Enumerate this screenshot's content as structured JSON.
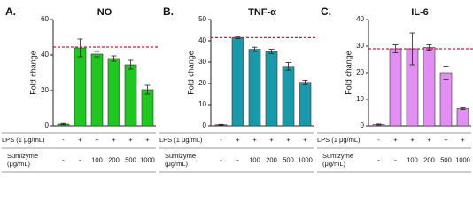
{
  "chart_data": [
    {
      "type": "bar",
      "panel": "A.",
      "title": "NO",
      "y_label": "Fold change",
      "values": [
        1,
        44,
        40.5,
        38,
        34.5,
        20.5
      ],
      "errors": [
        0.4,
        5,
        1.5,
        1.5,
        2.5,
        2.5
      ],
      "color": "#21c721",
      "reference_line": 44.5,
      "reference_color": "#c8203c",
      "ylim": [
        0,
        60
      ],
      "yticks": [
        0,
        20,
        40,
        60
      ],
      "conditions": [
        {
          "name": [
            "LPS (1 μg/mL)"
          ],
          "values": [
            "-",
            "+",
            "+",
            "+",
            "+",
            "+"
          ]
        },
        {
          "name": [
            "Sumizyme",
            "(μg/mL)"
          ],
          "values": [
            "-",
            "-",
            "100",
            "200",
            "500",
            "1000"
          ]
        }
      ]
    },
    {
      "type": "bar",
      "panel": "B.",
      "title": "TNF-α",
      "y_label": "Fold change",
      "values": [
        0.5,
        41.5,
        36,
        35,
        28,
        20.5
      ],
      "errors": [
        0.2,
        0.5,
        1,
        1,
        1.8,
        1
      ],
      "color": "#1a99ab",
      "reference_line": 41.5,
      "reference_color": "#c8203c",
      "ylim": [
        0,
        50
      ],
      "yticks": [
        0,
        10,
        20,
        30,
        40,
        50
      ],
      "conditions": [
        {
          "name": [
            "LPS (1 μg/mL)"
          ],
          "values": [
            "-",
            "+",
            "+",
            "+",
            "+",
            "+"
          ]
        },
        {
          "name": [
            "Sumizyme",
            "(μg/mL)"
          ],
          "values": [
            "-",
            "-",
            "100",
            "200",
            "500",
            "1000"
          ]
        }
      ]
    },
    {
      "type": "bar",
      "panel": "C.",
      "title": "IL-6",
      "y_label": "Fold change",
      "values": [
        0.5,
        29,
        29,
        29.5,
        20,
        6.5
      ],
      "errors": [
        0.2,
        1.5,
        6,
        1,
        2.5,
        0.3
      ],
      "color": "#e28ef3",
      "reference_line": 29,
      "reference_color": "#c8203c",
      "ylim": [
        0,
        40
      ],
      "yticks": [
        0,
        10,
        20,
        30,
        40
      ],
      "conditions": [
        {
          "name": [
            "LPS (1 μg/mL)"
          ],
          "values": [
            "-",
            "+",
            "+",
            "+",
            "+",
            "+"
          ]
        },
        {
          "name": [
            "Sumizyme",
            "(μg/mL)"
          ],
          "values": [
            "-",
            "-",
            "100",
            "200",
            "500",
            "1000"
          ]
        }
      ]
    }
  ]
}
